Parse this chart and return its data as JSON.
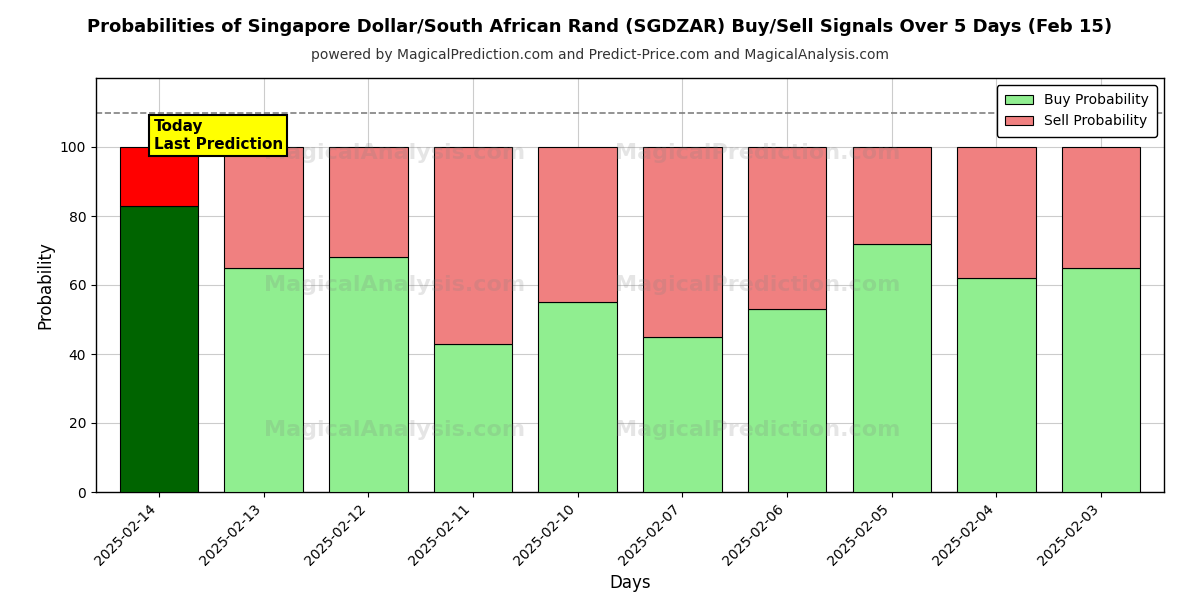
{
  "title": "Probabilities of Singapore Dollar/South African Rand (SGDZAR) Buy/Sell Signals Over 5 Days (Feb 15)",
  "subtitle": "powered by MagicalPrediction.com and Predict-Price.com and MagicalAnalysis.com",
  "xlabel": "Days",
  "ylabel": "Probability",
  "categories": [
    "2025-02-14",
    "2025-02-13",
    "2025-02-12",
    "2025-02-11",
    "2025-02-10",
    "2025-02-07",
    "2025-02-06",
    "2025-02-05",
    "2025-02-04",
    "2025-02-03"
  ],
  "buy_values": [
    83,
    65,
    68,
    43,
    55,
    45,
    53,
    72,
    62,
    65
  ],
  "sell_values": [
    17,
    35,
    32,
    57,
    45,
    55,
    47,
    28,
    38,
    35
  ],
  "today_buy_color": "#006400",
  "today_sell_color": "#ff0000",
  "buy_color": "#90EE90",
  "sell_color": "#F08080",
  "today_annotation_bg": "#ffff00",
  "today_annotation_text": "Today\nLast Prediction",
  "ylim": [
    0,
    120
  ],
  "yticks": [
    0,
    20,
    40,
    60,
    80,
    100
  ],
  "dashed_line_y": 110,
  "bar_edgecolor": "#000000",
  "bar_linewidth": 0.8,
  "grid_color": "#cccccc",
  "background_color": "#ffffff",
  "legend_buy_label": "Buy Probability",
  "legend_sell_label": "Sell Probability",
  "bar_width": 0.75
}
